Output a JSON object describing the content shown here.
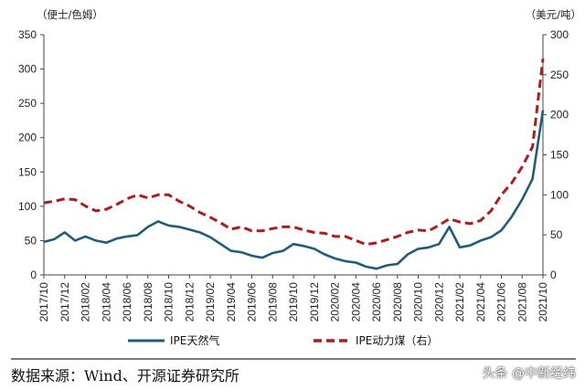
{
  "chart_data": {
    "type": "line",
    "left_axis": {
      "unit": "（便士/色姆）",
      "ylim": [
        0,
        350
      ],
      "ticks": [
        0,
        50,
        100,
        150,
        200,
        250,
        300,
        350
      ]
    },
    "right_axis": {
      "unit": "（美元/吨）",
      "ylim": [
        0,
        300
      ],
      "ticks": [
        0,
        50,
        100,
        150,
        200,
        250,
        300
      ]
    },
    "x_tick_labels": [
      "2017/10",
      "2017/12",
      "2018/02",
      "2018/04",
      "2018/06",
      "2018/08",
      "2018/10",
      "2018/12",
      "2019/02",
      "2019/04",
      "2019/06",
      "2019/08",
      "2019/10",
      "2019/12",
      "2020/02",
      "2020/04",
      "2020/06",
      "2020/08",
      "2020/10",
      "2020/12",
      "2021/02",
      "2021/04",
      "2021/06",
      "2021/08",
      "2021/10"
    ],
    "grid": false,
    "legend_position": "bottom",
    "series": [
      {
        "name": "IPE天然气",
        "axis": "left",
        "color": "#1f5c7a",
        "style": "solid",
        "x": [
          "2017/10",
          "2017/11",
          "2017/12",
          "2018/01",
          "2018/02",
          "2018/03",
          "2018/04",
          "2018/05",
          "2018/06",
          "2018/07",
          "2018/08",
          "2018/09",
          "2018/10",
          "2018/11",
          "2018/12",
          "2019/01",
          "2019/02",
          "2019/03",
          "2019/04",
          "2019/05",
          "2019/06",
          "2019/07",
          "2019/08",
          "2019/09",
          "2019/10",
          "2019/11",
          "2019/12",
          "2020/01",
          "2020/02",
          "2020/03",
          "2020/04",
          "2020/05",
          "2020/06",
          "2020/07",
          "2020/08",
          "2020/09",
          "2020/10",
          "2020/11",
          "2020/12",
          "2021/01",
          "2021/02",
          "2021/03",
          "2021/04",
          "2021/05",
          "2021/06",
          "2021/07",
          "2021/08",
          "2021/09",
          "2021/10"
        ],
        "values": [
          48,
          52,
          62,
          50,
          56,
          50,
          47,
          53,
          56,
          58,
          70,
          78,
          72,
          70,
          66,
          62,
          55,
          45,
          35,
          33,
          28,
          25,
          32,
          35,
          45,
          42,
          38,
          30,
          24,
          20,
          18,
          12,
          9,
          14,
          16,
          30,
          38,
          40,
          45,
          70,
          40,
          43,
          50,
          55,
          65,
          85,
          110,
          140,
          240
        ]
      },
      {
        "name": "IPE动力煤（右）",
        "axis": "right",
        "color": "#b01c1c",
        "style": "dashed",
        "x": [
          "2017/10",
          "2017/11",
          "2017/12",
          "2018/01",
          "2018/02",
          "2018/03",
          "2018/04",
          "2018/05",
          "2018/06",
          "2018/07",
          "2018/08",
          "2018/09",
          "2018/10",
          "2018/11",
          "2018/12",
          "2019/01",
          "2019/02",
          "2019/03",
          "2019/04",
          "2019/05",
          "2019/06",
          "2019/07",
          "2019/08",
          "2019/09",
          "2019/10",
          "2019/11",
          "2019/12",
          "2020/01",
          "2020/02",
          "2020/03",
          "2020/04",
          "2020/05",
          "2020/06",
          "2020/07",
          "2020/08",
          "2020/09",
          "2020/10",
          "2020/11",
          "2020/12",
          "2021/01",
          "2021/02",
          "2021/03",
          "2021/04",
          "2021/05",
          "2021/06",
          "2021/07",
          "2021/08",
          "2021/09",
          "2021/10"
        ],
        "values": [
          90,
          92,
          95,
          94,
          86,
          80,
          82,
          88,
          95,
          100,
          96,
          100,
          100,
          92,
          86,
          78,
          72,
          65,
          57,
          60,
          55,
          55,
          58,
          60,
          60,
          56,
          53,
          52,
          48,
          48,
          43,
          38,
          40,
          44,
          48,
          53,
          56,
          55,
          62,
          70,
          66,
          64,
          68,
          80,
          100,
          115,
          135,
          160,
          270
        ]
      }
    ]
  },
  "footer": {
    "source": "数据来源：Wind、开源证券研究所",
    "watermark": "头条 @中新经纬"
  }
}
